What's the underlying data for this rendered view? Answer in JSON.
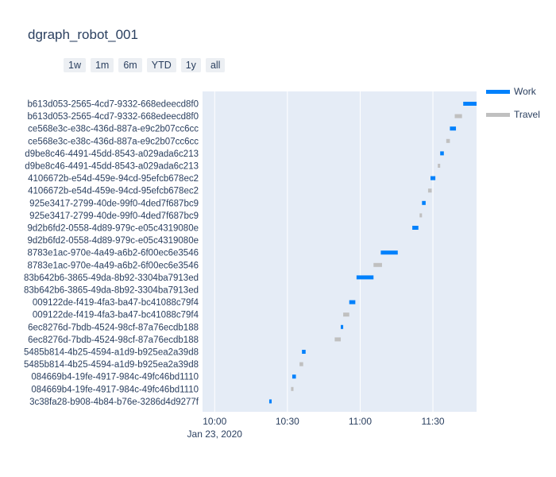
{
  "title": "dgraph_robot_001",
  "range_buttons": [
    "1w",
    "1m",
    "6m",
    "YTD",
    "1y",
    "all"
  ],
  "colors": {
    "work": "#0081fc",
    "travel": "#c0c0c0",
    "plot_bg": "#e5ecf6",
    "grid": "#ffffff"
  },
  "chart_data": {
    "type": "gantt",
    "title": "dgraph_robot_001",
    "x_axis": {
      "type": "date",
      "range": [
        "2020-01-23T09:55:00",
        "2020-01-23T11:48:00"
      ],
      "tick_labels": [
        "10:00",
        "10:30",
        "11:00",
        "11:30"
      ],
      "tick_values": [
        "2020-01-23T10:00:00",
        "2020-01-23T10:30:00",
        "2020-01-23T11:00:00",
        "2020-01-23T11:30:00"
      ],
      "date_label": "Jan 23, 2020"
    },
    "legend": [
      "Work",
      "Travel"
    ],
    "legend_position": "top-right",
    "categories": [
      "b613d053-2565-4cd7-9332-668edeecd8f0",
      "b613d053-2565-4cd7-9332-668edeecd8f0",
      "ce568e3c-e38c-436d-887a-e9c2b07cc6cc",
      "ce568e3c-e38c-436d-887a-e9c2b07cc6cc",
      "d9be8c46-4491-45dd-8543-a029ada6c213",
      "d9be8c46-4491-45dd-8543-a029ada6c213",
      "4106672b-e54d-459e-94cd-95efcb678ec2",
      "4106672b-e54d-459e-94cd-95efcb678ec2",
      "925e3417-2799-40de-99f0-4ded7f687bc9",
      "925e3417-2799-40de-99f0-4ded7f687bc9",
      "9d2b6fd2-0558-4d89-979c-e05c4319080e",
      "9d2b6fd2-0558-4d89-979c-e05c4319080e",
      "8783e1ac-970e-4a49-a6b2-6f00ec6e3546",
      "8783e1ac-970e-4a49-a6b2-6f00ec6e3546",
      "83b642b6-3865-49da-8b92-3304ba7913ed",
      "83b642b6-3865-49da-8b92-3304ba7913ed",
      "009122de-f419-4fa3-ba47-bc41088c79f4",
      "009122de-f419-4fa3-ba47-bc41088c79f4",
      "6ec8276d-7bdb-4524-98cf-87a76ecdb188",
      "6ec8276d-7bdb-4524-98cf-87a76ecdb188",
      "5485b814-4b25-4594-a1d9-b925ea2a39d8",
      "5485b814-4b25-4594-a1d9-b925ea2a39d8",
      "084669b4-19fe-4917-984c-49fc46bd1110",
      "084669b4-19fe-4917-984c-49fc46bd1110",
      "3c38fa28-b908-4b84-b76e-3286d4d9277f"
    ],
    "tasks": [
      {
        "row": 0,
        "type": "Work",
        "start": "2020-01-23T11:42:30",
        "end": "2020-01-23T11:48:00"
      },
      {
        "row": 1,
        "type": "Travel",
        "start": "2020-01-23T11:39:00",
        "end": "2020-01-23T11:42:00"
      },
      {
        "row": 2,
        "type": "Work",
        "start": "2020-01-23T11:37:00",
        "end": "2020-01-23T11:39:30"
      },
      {
        "row": 3,
        "type": "Travel",
        "start": "2020-01-23T11:35:30",
        "end": "2020-01-23T11:37:00"
      },
      {
        "row": 4,
        "type": "Work",
        "start": "2020-01-23T11:33:00",
        "end": "2020-01-23T11:34:30"
      },
      {
        "row": 5,
        "type": "Travel",
        "start": "2020-01-23T11:32:00",
        "end": "2020-01-23T11:33:00"
      },
      {
        "row": 6,
        "type": "Work",
        "start": "2020-01-23T11:29:00",
        "end": "2020-01-23T11:31:00"
      },
      {
        "row": 7,
        "type": "Travel",
        "start": "2020-01-23T11:28:00",
        "end": "2020-01-23T11:29:30"
      },
      {
        "row": 8,
        "type": "Work",
        "start": "2020-01-23T11:25:30",
        "end": "2020-01-23T11:27:00"
      },
      {
        "row": 9,
        "type": "Travel",
        "start": "2020-01-23T11:24:30",
        "end": "2020-01-23T11:25:30"
      },
      {
        "row": 10,
        "type": "Work",
        "start": "2020-01-23T11:21:30",
        "end": "2020-01-23T11:24:00"
      },
      {
        "row": 12,
        "type": "Work",
        "start": "2020-01-23T11:08:30",
        "end": "2020-01-23T11:15:30"
      },
      {
        "row": 13,
        "type": "Travel",
        "start": "2020-01-23T11:05:30",
        "end": "2020-01-23T11:09:00"
      },
      {
        "row": 14,
        "type": "Work",
        "start": "2020-01-23T10:58:30",
        "end": "2020-01-23T11:05:30"
      },
      {
        "row": 16,
        "type": "Work",
        "start": "2020-01-23T10:55:30",
        "end": "2020-01-23T10:58:00"
      },
      {
        "row": 17,
        "type": "Travel",
        "start": "2020-01-23T10:53:00",
        "end": "2020-01-23T10:55:30"
      },
      {
        "row": 18,
        "type": "Work",
        "start": "2020-01-23T10:52:00",
        "end": "2020-01-23T10:53:00"
      },
      {
        "row": 19,
        "type": "Travel",
        "start": "2020-01-23T10:49:30",
        "end": "2020-01-23T10:52:00"
      },
      {
        "row": 20,
        "type": "Work",
        "start": "2020-01-23T10:36:00",
        "end": "2020-01-23T10:37:30"
      },
      {
        "row": 21,
        "type": "Travel",
        "start": "2020-01-23T10:35:00",
        "end": "2020-01-23T10:36:30"
      },
      {
        "row": 22,
        "type": "Work",
        "start": "2020-01-23T10:32:00",
        "end": "2020-01-23T10:33:30"
      },
      {
        "row": 23,
        "type": "Travel",
        "start": "2020-01-23T10:31:30",
        "end": "2020-01-23T10:32:30"
      },
      {
        "row": 24,
        "type": "Work",
        "start": "2020-01-23T10:22:30",
        "end": "2020-01-23T10:23:30"
      }
    ]
  }
}
